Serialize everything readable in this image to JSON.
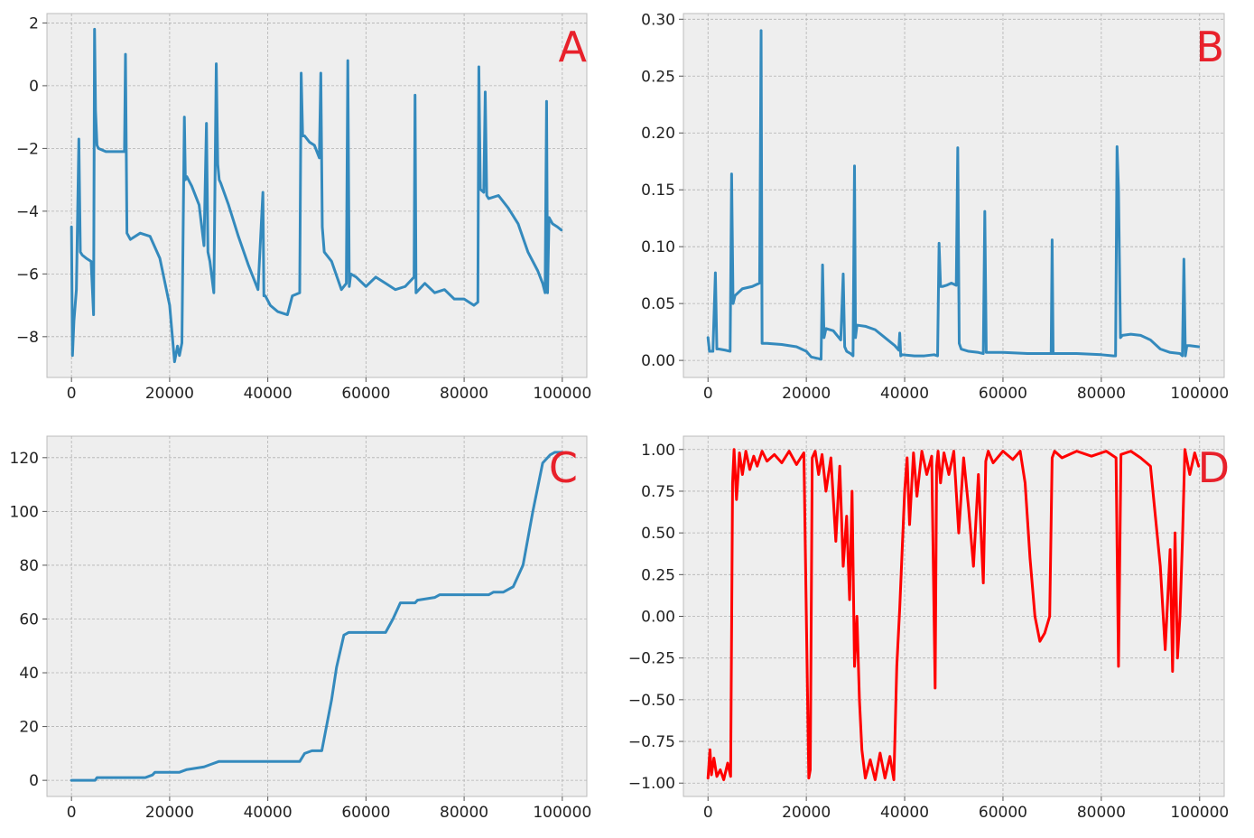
{
  "chart_data": [
    {
      "type": "line",
      "annotation": "A",
      "annotation_color": "#e8212b",
      "line_color": "#348abd",
      "background": "#eeeeee",
      "grid": true,
      "xlim": [
        -5000,
        105000
      ],
      "ylim": [
        -9.3,
        2.3
      ],
      "xticks": [
        0,
        20000,
        40000,
        60000,
        80000,
        100000
      ],
      "xtick_labels": [
        "0",
        "20000",
        "40000",
        "60000",
        "80000",
        "100000"
      ],
      "yticks": [
        -8,
        -6,
        -4,
        -2,
        0,
        2
      ],
      "ytick_labels": [
        "−8",
        "−6",
        "−4",
        "−2",
        "0",
        "2"
      ],
      "series": [
        {
          "x": [
            0,
            200,
            500,
            1000,
            1500,
            1800,
            2200,
            3000,
            4000,
            4500,
            4700,
            4900,
            5200,
            5500,
            7000,
            9000,
            10800,
            11000,
            11300,
            12000,
            14000,
            16000,
            18000,
            20000,
            21000,
            21600,
            22000,
            22500,
            23000,
            23200,
            23500,
            24500,
            26000,
            27000,
            27500,
            27800,
            28200,
            29000,
            29500,
            29800,
            30100,
            30400,
            32000,
            34000,
            36000,
            38000,
            39000,
            39200,
            39500,
            40500,
            42000,
            44000,
            45000,
            46500,
            46800,
            47100,
            47500,
            48500,
            49500,
            50500,
            50800,
            51100,
            51500,
            53000,
            55000,
            56000,
            56300,
            56600,
            56900,
            58000,
            60000,
            62000,
            64000,
            66000,
            68000,
            69800,
            70000,
            70200,
            72000,
            74000,
            76000,
            78000,
            80000,
            82000,
            82800,
            83000,
            83300,
            84000,
            84300,
            84600,
            85000,
            87000,
            89000,
            91000,
            93000,
            95000,
            96000,
            96500,
            96800,
            97000,
            97300,
            98000,
            99000,
            99800
          ],
          "y": [
            -4.5,
            -8.6,
            -7.5,
            -6.5,
            -1.7,
            -5.3,
            -5.4,
            -5.5,
            -5.6,
            -7.3,
            1.8,
            -0.8,
            -1.9,
            -2.0,
            -2.1,
            -2.1,
            -2.1,
            1.0,
            -4.7,
            -4.9,
            -4.7,
            -4.8,
            -5.5,
            -7.0,
            -8.8,
            -8.3,
            -8.6,
            -8.2,
            -1.0,
            -3.0,
            -2.9,
            -3.2,
            -3.8,
            -5.1,
            -1.2,
            -5.3,
            -5.6,
            -6.6,
            0.7,
            -2.5,
            -3.0,
            -3.1,
            -3.8,
            -4.8,
            -5.7,
            -6.5,
            -3.4,
            -6.7,
            -6.7,
            -7.0,
            -7.2,
            -7.3,
            -6.7,
            -6.6,
            0.4,
            -1.6,
            -1.6,
            -1.8,
            -1.9,
            -2.3,
            0.4,
            -4.5,
            -5.3,
            -5.6,
            -6.5,
            -6.3,
            0.8,
            -6.4,
            -6.0,
            -6.1,
            -6.4,
            -6.1,
            -6.3,
            -6.5,
            -6.4,
            -6.1,
            -0.3,
            -6.6,
            -6.3,
            -6.6,
            -6.5,
            -6.8,
            -6.8,
            -7.0,
            -6.9,
            0.6,
            -3.3,
            -3.4,
            -0.2,
            -3.5,
            -3.6,
            -3.5,
            -3.9,
            -4.4,
            -5.3,
            -5.9,
            -6.3,
            -6.6,
            -0.5,
            -6.6,
            -4.2,
            -4.4,
            -4.5,
            -4.6
          ]
        }
      ]
    },
    {
      "type": "line",
      "annotation": "B",
      "annotation_color": "#e8212b",
      "line_color": "#348abd",
      "background": "#eeeeee",
      "grid": true,
      "xlim": [
        -5000,
        105000
      ],
      "ylim": [
        -0.015,
        0.305
      ],
      "xticks": [
        0,
        20000,
        40000,
        60000,
        80000,
        100000
      ],
      "xtick_labels": [
        "0",
        "20000",
        "40000",
        "60000",
        "80000",
        "100000"
      ],
      "yticks": [
        0.0,
        0.05,
        0.1,
        0.15,
        0.2,
        0.25,
        0.3
      ],
      "ytick_labels": [
        "0.00",
        "0.05",
        "0.10",
        "0.15",
        "0.20",
        "0.25",
        "0.30"
      ],
      "series": [
        {
          "x": [
            0,
            300,
            1000,
            1500,
            1800,
            2200,
            3500,
            4500,
            4800,
            5100,
            5500,
            7000,
            9000,
            10500,
            10800,
            11000,
            11400,
            12000,
            15000,
            18000,
            20000,
            21000,
            22000,
            23000,
            23300,
            23600,
            24000,
            25500,
            27000,
            27500,
            27800,
            28200,
            29000,
            29500,
            29800,
            30000,
            30300,
            32000,
            34000,
            36000,
            38000,
            38800,
            39000,
            39200,
            39500,
            42000,
            44000,
            46000,
            46700,
            47000,
            47300,
            47700,
            48500,
            49500,
            50500,
            50800,
            51100,
            51500,
            53000,
            55000,
            56000,
            56300,
            56600,
            57000,
            60000,
            65000,
            69800,
            70000,
            70200,
            75000,
            80000,
            82500,
            82900,
            83200,
            83500,
            83900,
            84300,
            86000,
            88000,
            90000,
            92000,
            94000,
            96000,
            96500,
            96800,
            97100,
            97400,
            98000,
            99800
          ],
          "y": [
            0.02,
            0.008,
            0.008,
            0.077,
            0.01,
            0.01,
            0.009,
            0.008,
            0.164,
            0.05,
            0.057,
            0.063,
            0.065,
            0.068,
            0.29,
            0.015,
            0.015,
            0.015,
            0.014,
            0.012,
            0.008,
            0.003,
            0.002,
            0.001,
            0.084,
            0.02,
            0.028,
            0.026,
            0.018,
            0.076,
            0.012,
            0.008,
            0.006,
            0.004,
            0.171,
            0.02,
            0.031,
            0.03,
            0.027,
            0.02,
            0.013,
            0.009,
            0.024,
            0.004,
            0.005,
            0.004,
            0.004,
            0.005,
            0.004,
            0.103,
            0.065,
            0.065,
            0.066,
            0.068,
            0.066,
            0.187,
            0.015,
            0.01,
            0.008,
            0.007,
            0.006,
            0.131,
            0.007,
            0.007,
            0.007,
            0.006,
            0.006,
            0.106,
            0.006,
            0.006,
            0.005,
            0.004,
            0.004,
            0.188,
            0.15,
            0.02,
            0.022,
            0.023,
            0.022,
            0.018,
            0.01,
            0.007,
            0.006,
            0.004,
            0.089,
            0.004,
            0.013,
            0.013,
            0.012
          ]
        }
      ]
    },
    {
      "type": "line",
      "annotation": "C",
      "annotation_color": "#e8212b",
      "line_color": "#348abd",
      "background": "#eeeeee",
      "grid": true,
      "xlim": [
        -5000,
        105000
      ],
      "ylim": [
        -6,
        128
      ],
      "xticks": [
        0,
        20000,
        40000,
        60000,
        80000,
        100000
      ],
      "xtick_labels": [
        "0",
        "20000",
        "40000",
        "60000",
        "80000",
        "100000"
      ],
      "yticks": [
        0,
        20,
        40,
        60,
        80,
        100,
        120
      ],
      "ytick_labels": [
        "0",
        "20",
        "40",
        "60",
        "80",
        "100",
        "120"
      ],
      "series": [
        {
          "x": [
            0,
            4800,
            5200,
            15000,
            16500,
            17000,
            22000,
            23500,
            27000,
            28500,
            30000,
            46500,
            47500,
            49000,
            51000,
            53000,
            54000,
            55500,
            56500,
            57000,
            61000,
            64000,
            65500,
            66500,
            67000,
            70000,
            70500,
            74000,
            75000,
            85000,
            86000,
            88000,
            89000,
            90000,
            92000,
            94000,
            96000,
            97500,
            98500,
            100000
          ],
          "y": [
            0,
            0,
            1,
            1,
            2,
            3,
            3,
            4,
            5,
            6,
            7,
            7,
            10,
            11,
            11,
            30,
            42,
            54,
            55,
            55,
            55,
            55,
            60,
            64,
            66,
            66,
            67,
            68,
            69,
            69,
            70,
            70,
            71,
            72,
            80,
            100,
            118,
            121,
            122,
            122
          ]
        }
      ]
    },
    {
      "type": "line",
      "annotation": "D",
      "annotation_color": "#e8212b",
      "line_color": "#ff0000",
      "background": "#eeeeee",
      "grid": true,
      "xlim": [
        -5000,
        105000
      ],
      "ylim": [
        -1.08,
        1.08
      ],
      "xticks": [
        0,
        20000,
        40000,
        60000,
        80000,
        100000
      ],
      "xtick_labels": [
        "0",
        "20000",
        "40000",
        "60000",
        "80000",
        "100000"
      ],
      "yticks": [
        -1.0,
        -0.75,
        -0.5,
        -0.25,
        0.0,
        0.25,
        0.5,
        0.75,
        1.0
      ],
      "ytick_labels": [
        "−1.00",
        "−0.75",
        "−0.50",
        "−0.25",
        "0.00",
        "0.25",
        "0.50",
        "0.75",
        "1.00"
      ],
      "series": [
        {
          "x": [
            0,
            400,
            700,
            1200,
            1800,
            2500,
            3200,
            4000,
            4600,
            5000,
            5300,
            5800,
            6400,
            7000,
            7700,
            8500,
            9300,
            10000,
            11000,
            12000,
            13500,
            15000,
            16500,
            18000,
            19500,
            20500,
            20800,
            21200,
            21800,
            22500,
            23200,
            24000,
            25000,
            26000,
            26800,
            27500,
            28200,
            28800,
            29300,
            29800,
            30300,
            30800,
            31300,
            32000,
            33000,
            34000,
            35000,
            36000,
            37000,
            37800,
            38400,
            39000,
            39500,
            40000,
            40500,
            41000,
            41800,
            42500,
            43500,
            44500,
            45500,
            46200,
            46500,
            46800,
            47300,
            48000,
            49000,
            50000,
            51000,
            52000,
            53000,
            54000,
            55000,
            56000,
            56500,
            57000,
            58000,
            60000,
            62000,
            63500,
            64500,
            65500,
            66500,
            67500,
            68500,
            69500,
            70000,
            70500,
            72000,
            75000,
            78000,
            81000,
            83000,
            83500,
            84000,
            86000,
            88000,
            90000,
            91000,
            92000,
            93000,
            94000,
            94500,
            95000,
            95500,
            96000,
            96500,
            97000,
            98000,
            99000,
            99800
          ],
          "y": [
            -0.97,
            -0.8,
            -0.95,
            -0.85,
            -0.96,
            -0.92,
            -0.98,
            -0.88,
            -0.96,
            0.8,
            1.0,
            0.7,
            0.98,
            0.85,
            0.99,
            0.88,
            0.96,
            0.9,
            0.99,
            0.93,
            0.97,
            0.92,
            0.99,
            0.91,
            0.98,
            -0.97,
            -0.92,
            0.95,
            0.99,
            0.85,
            0.97,
            0.75,
            0.95,
            0.45,
            0.9,
            0.3,
            0.6,
            0.1,
            0.75,
            -0.3,
            0.0,
            -0.5,
            -0.8,
            -0.97,
            -0.86,
            -0.98,
            -0.82,
            -0.97,
            -0.84,
            -0.98,
            -0.3,
            0.05,
            0.4,
            0.75,
            0.95,
            0.55,
            0.98,
            0.72,
            0.99,
            0.85,
            0.96,
            -0.43,
            0.9,
            0.99,
            0.8,
            0.98,
            0.85,
            0.99,
            0.5,
            0.95,
            0.65,
            0.3,
            0.85,
            0.2,
            0.93,
            0.99,
            0.92,
            0.99,
            0.94,
            0.99,
            0.8,
            0.35,
            0.0,
            -0.15,
            -0.1,
            0.0,
            0.95,
            0.99,
            0.95,
            0.99,
            0.96,
            0.99,
            0.95,
            -0.3,
            0.97,
            0.99,
            0.95,
            0.9,
            0.6,
            0.3,
            -0.2,
            0.4,
            -0.33,
            0.5,
            -0.25,
            0.0,
            0.45,
            1.0,
            0.85,
            0.98,
            0.9
          ]
        }
      ]
    }
  ]
}
